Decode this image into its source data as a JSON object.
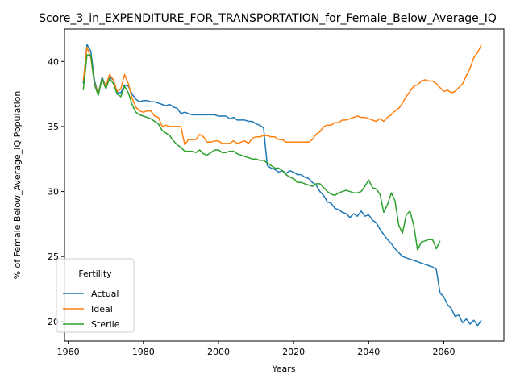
{
  "chart_data": {
    "type": "line",
    "title": "Score_3_in_EXPENDITURE_FOR_TRANSPORTATION_for_Female_Below_Average_IQ",
    "xlabel": "Years",
    "ylabel": "% of Female Below_Average_IQ Population",
    "xlim": [
      1959,
      2076
    ],
    "ylim": [
      18.5,
      42.5
    ],
    "xticks": [
      1960,
      1980,
      2000,
      2020,
      2040,
      2060
    ],
    "yticks": [
      20,
      25,
      30,
      35,
      40
    ],
    "grid": false,
    "legend": {
      "title": "Fertility",
      "placement": "lower-left"
    },
    "series": [
      {
        "name": "Actual",
        "color": "#1f77b4",
        "x": [
          1964,
          1965,
          1966,
          1967,
          1968,
          1969,
          1970,
          1971,
          1972,
          1973,
          1974,
          1975,
          1976,
          1977,
          1978,
          1979,
          1980,
          1981,
          1982,
          1983,
          1984,
          1985,
          1986,
          1987,
          1988,
          1989,
          1990,
          1991,
          1992,
          1993,
          1994,
          1995,
          1996,
          1997,
          1998,
          1999,
          2000,
          2001,
          2002,
          2003,
          2004,
          2005,
          2006,
          2007,
          2008,
          2009,
          2010,
          2011,
          2012,
          2013,
          2014,
          2015,
          2016,
          2017,
          2018,
          2019,
          2020,
          2021,
          2022,
          2023,
          2024,
          2025,
          2026,
          2027,
          2028,
          2029,
          2030,
          2031,
          2032,
          2033,
          2034,
          2035,
          2036,
          2037,
          2038,
          2039,
          2040,
          2041,
          2042,
          2043,
          2044,
          2045,
          2046,
          2047,
          2048,
          2049,
          2050,
          2051,
          2052,
          2053,
          2054,
          2055,
          2056,
          2057,
          2058,
          2059,
          2060,
          2061,
          2062,
          2063,
          2064,
          2065,
          2066,
          2067,
          2068,
          2069,
          2070
        ],
        "values": [
          38.3,
          41.3,
          40.8,
          38.5,
          37.5,
          38.8,
          38.1,
          38.8,
          38.6,
          37.6,
          37.6,
          38.2,
          38.1,
          37.5,
          37.1,
          36.9,
          37.0,
          37.0,
          36.9,
          36.9,
          36.8,
          36.7,
          36.6,
          36.7,
          36.5,
          36.4,
          36.0,
          36.1,
          36.0,
          35.9,
          35.9,
          35.9,
          35.9,
          35.9,
          35.9,
          35.9,
          35.8,
          35.8,
          35.8,
          35.6,
          35.7,
          35.5,
          35.5,
          35.5,
          35.4,
          35.4,
          35.2,
          35.1,
          34.9,
          32.0,
          31.8,
          31.7,
          31.5,
          31.6,
          31.4,
          31.6,
          31.5,
          31.3,
          31.3,
          31.1,
          31.0,
          30.7,
          30.5,
          30.0,
          29.7,
          29.2,
          29.1,
          28.7,
          28.6,
          28.4,
          28.3,
          28.0,
          28.3,
          28.1,
          28.5,
          28.1,
          28.2,
          27.8,
          27.6,
          27.1,
          26.7,
          26.3,
          26.0,
          25.6,
          25.3,
          25.0,
          24.9,
          24.8,
          24.7,
          24.6,
          24.5,
          24.4,
          24.3,
          24.2,
          24.0,
          22.2,
          21.9,
          21.3,
          21.0,
          20.4,
          20.5,
          19.9,
          20.2,
          19.8,
          20.1,
          19.7,
          20.1
        ]
      },
      {
        "name": "Ideal",
        "color": "#ff7f0e",
        "x": [
          1964,
          1965,
          1966,
          1967,
          1968,
          1969,
          1970,
          1971,
          1972,
          1973,
          1974,
          1975,
          1976,
          1977,
          1978,
          1979,
          1980,
          1981,
          1982,
          1983,
          1984,
          1985,
          1986,
          1987,
          1988,
          1989,
          1990,
          1991,
          1992,
          1993,
          1994,
          1995,
          1996,
          1997,
          1998,
          1999,
          2000,
          2001,
          2002,
          2003,
          2004,
          2005,
          2006,
          2007,
          2008,
          2009,
          2010,
          2011,
          2012,
          2013,
          2014,
          2015,
          2016,
          2017,
          2018,
          2019,
          2020,
          2021,
          2022,
          2023,
          2024,
          2025,
          2026,
          2027,
          2028,
          2029,
          2030,
          2031,
          2032,
          2033,
          2034,
          2035,
          2036,
          2037,
          2038,
          2039,
          2040,
          2041,
          2042,
          2043,
          2044,
          2045,
          2046,
          2047,
          2048,
          2049,
          2050,
          2051,
          2052,
          2053,
          2054,
          2055,
          2056,
          2057,
          2058,
          2059,
          2060,
          2061,
          2062,
          2063,
          2064,
          2065,
          2066,
          2067,
          2068,
          2069,
          2070
        ],
        "values": [
          38.5,
          41.1,
          40.3,
          38.3,
          37.5,
          38.7,
          38.1,
          39.0,
          38.6,
          37.7,
          37.9,
          39.0,
          38.3,
          37.2,
          36.5,
          36.2,
          36.1,
          36.2,
          36.2,
          35.8,
          35.7,
          35.0,
          35.1,
          35.0,
          35.0,
          35.0,
          35.0,
          33.6,
          34.0,
          34.0,
          34.0,
          34.4,
          34.2,
          33.8,
          33.8,
          33.9,
          33.9,
          33.7,
          33.7,
          33.7,
          33.9,
          33.7,
          33.8,
          33.9,
          33.7,
          34.1,
          34.2,
          34.2,
          34.3,
          34.3,
          34.2,
          34.2,
          34.0,
          34.0,
          33.8,
          33.8,
          33.8,
          33.8,
          33.8,
          33.8,
          33.8,
          34.0,
          34.4,
          34.6,
          35.0,
          35.1,
          35.1,
          35.3,
          35.3,
          35.5,
          35.5,
          35.6,
          35.7,
          35.8,
          35.7,
          35.7,
          35.6,
          35.5,
          35.4,
          35.6,
          35.4,
          35.7,
          35.9,
          36.2,
          36.4,
          36.8,
          37.3,
          37.7,
          38.1,
          38.2,
          38.5,
          38.6,
          38.5,
          38.5,
          38.3,
          38.0,
          37.7,
          37.8,
          37.6,
          37.7,
          38.0,
          38.3,
          38.9,
          39.5,
          40.3,
          40.7,
          41.3
        ]
      },
      {
        "name": "Sterile",
        "color": "#2ca02c",
        "x": [
          1964,
          1965,
          1966,
          1967,
          1968,
          1969,
          1970,
          1971,
          1972,
          1973,
          1974,
          1975,
          1976,
          1977,
          1978,
          1979,
          1980,
          1981,
          1982,
          1983,
          1984,
          1985,
          1986,
          1987,
          1988,
          1989,
          1990,
          1991,
          1992,
          1993,
          1994,
          1995,
          1996,
          1997,
          1998,
          1999,
          2000,
          2001,
          2002,
          2003,
          2004,
          2005,
          2006,
          2007,
          2008,
          2009,
          2010,
          2011,
          2012,
          2013,
          2014,
          2015,
          2016,
          2017,
          2018,
          2019,
          2020,
          2021,
          2022,
          2023,
          2024,
          2025,
          2026,
          2027,
          2028,
          2029,
          2030,
          2031,
          2032,
          2033,
          2034,
          2035,
          2036,
          2037,
          2038,
          2039,
          2040,
          2041,
          2042,
          2043,
          2044,
          2045,
          2046,
          2047,
          2048,
          2049,
          2050,
          2051,
          2052,
          2053,
          2054,
          2055,
          2056,
          2057,
          2058,
          2059
        ],
        "values": [
          37.8,
          40.5,
          40.5,
          38.2,
          37.4,
          38.7,
          37.9,
          38.7,
          38.3,
          37.5,
          37.3,
          38.1,
          37.6,
          36.7,
          36.1,
          35.9,
          35.8,
          35.7,
          35.6,
          35.4,
          35.2,
          34.7,
          34.5,
          34.3,
          33.9,
          33.6,
          33.4,
          33.1,
          33.1,
          33.1,
          33.0,
          33.2,
          32.9,
          32.8,
          33.0,
          33.2,
          33.2,
          33.0,
          33.0,
          33.1,
          33.1,
          32.9,
          32.8,
          32.7,
          32.6,
          32.5,
          32.5,
          32.4,
          32.4,
          32.2,
          32.0,
          31.8,
          31.8,
          31.6,
          31.3,
          31.1,
          31.0,
          30.7,
          30.7,
          30.6,
          30.5,
          30.4,
          30.6,
          30.6,
          30.3,
          30.0,
          29.8,
          29.7,
          29.9,
          30.0,
          30.1,
          30.0,
          29.9,
          29.9,
          30.0,
          30.4,
          30.9,
          30.3,
          30.2,
          29.8,
          28.4,
          29.0,
          29.9,
          29.3,
          27.4,
          26.8,
          28.2,
          28.5,
          27.4,
          25.5,
          26.1,
          26.2,
          26.3,
          26.3,
          25.6,
          26.2
        ]
      }
    ]
  }
}
